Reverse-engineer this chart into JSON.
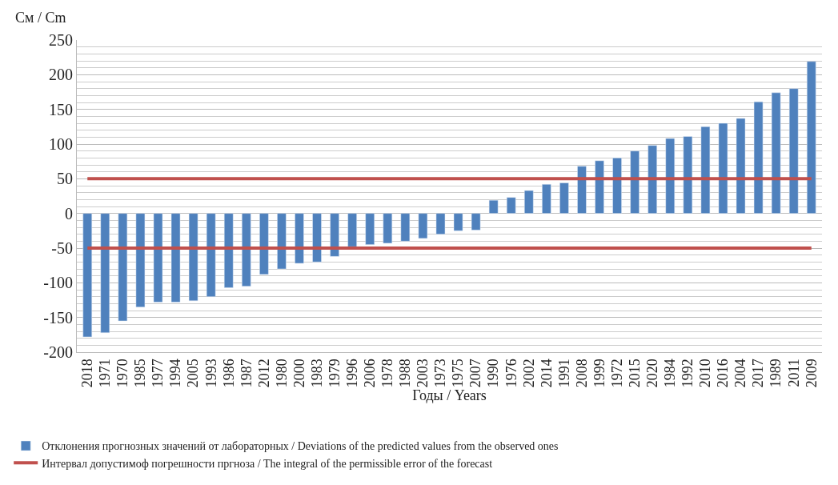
{
  "chart_data": {
    "type": "bar",
    "ylabel": "См / Cm",
    "xlabel": "Годы / Years",
    "categories": [
      "2018",
      "1971",
      "1970",
      "1985",
      "1977",
      "1994",
      "2005",
      "1993",
      "1986",
      "1987",
      "2012",
      "1980",
      "2000",
      "1983",
      "1979",
      "1996",
      "2006",
      "1978",
      "1988",
      "2003",
      "1973",
      "1975",
      "2007",
      "1990",
      "1976",
      "2002",
      "2014",
      "1991",
      "2008",
      "1999",
      "1972",
      "2015",
      "2020",
      "1984",
      "1992",
      "2010",
      "2016",
      "2004",
      "2017",
      "1989",
      "2011",
      "2009"
    ],
    "series": [
      {
        "name": "Отклонения прогнозных значений от лабораторных / Deviations of the predicted values from the observed ones",
        "color": "#4f81bd",
        "values": [
          -178,
          -172,
          -155,
          -135,
          -128,
          -128,
          -126,
          -120,
          -107,
          -105,
          -88,
          -80,
          -72,
          -70,
          -62,
          -48,
          -45,
          -43,
          -40,
          -36,
          -30,
          -25,
          -24,
          19,
          23,
          33,
          42,
          44,
          68,
          76,
          80,
          90,
          98,
          108,
          111,
          125,
          130,
          137,
          161,
          174,
          180,
          219
        ]
      },
      {
        "name": "Интервал допустимоф погрешности пргноза / The integral of the permissible error of the forecast",
        "type": "line",
        "color": "#c0504d",
        "values": [
          50,
          50,
          50,
          50,
          50,
          50,
          50,
          50,
          50,
          50,
          50,
          50,
          50,
          50,
          50,
          50,
          50,
          50,
          50,
          50,
          50,
          50,
          50,
          50,
          50,
          50,
          50,
          50,
          50,
          50,
          50,
          50,
          50,
          50,
          50,
          50,
          50,
          50,
          50,
          50,
          50,
          50
        ]
      },
      {
        "type": "line",
        "color": "#c0504d",
        "values": [
          -50,
          -50,
          -50,
          -50,
          -50,
          -50,
          -50,
          -50,
          -50,
          -50,
          -50,
          -50,
          -50,
          -50,
          -50,
          -50,
          -50,
          -50,
          -50,
          -50,
          -50,
          -50,
          -50,
          -50,
          -50,
          -50,
          -50,
          -50,
          -50,
          -50,
          -50,
          -50,
          -50,
          -50,
          -50,
          -50,
          -50,
          -50,
          -50,
          -50,
          -50,
          -50
        ]
      }
    ],
    "ylim": [
      -200,
      250
    ],
    "yticks": [
      -200,
      -150,
      -100,
      -50,
      0,
      50,
      100,
      150,
      200,
      250
    ],
    "grid": "y",
    "legend": "bottom"
  }
}
